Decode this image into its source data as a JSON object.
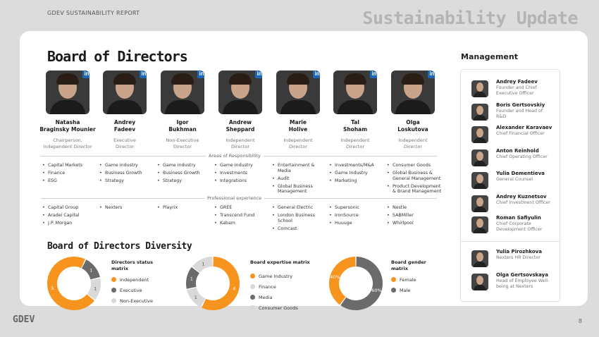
{
  "header": {
    "report_label": "GDEV SUSTAINABILITY REPORT",
    "title": "Sustainability Update"
  },
  "board": {
    "title": "Board of Directors",
    "directors": [
      {
        "name": "Natasha\nBraginsky Mounier",
        "role": "Chairperson,\nIndependent Director",
        "linkedin": "in"
      },
      {
        "name": "Andrey\nFadeev",
        "role": "Executive\nDirector",
        "linkedin": "in"
      },
      {
        "name": "Igor\nBukhman",
        "role": "Non-Executive\nDirector",
        "linkedin": "in"
      },
      {
        "name": "Andrew\nSheppard",
        "role": "Independent\nDirector",
        "linkedin": "in"
      },
      {
        "name": "Marie\nHolive",
        "role": "Independent\nDirector",
        "linkedin": "in"
      },
      {
        "name": "Tal\nShoham",
        "role": "Independent\nDirector",
        "linkedin": "in"
      },
      {
        "name": "Olga\nLoskutova",
        "role": "Independent\nDirector",
        "linkedin": "in"
      }
    ],
    "areas_label": "Areas of Responsibility",
    "areas": [
      [
        "Capital Markets",
        "Finance",
        "ESG"
      ],
      [
        "Game Industry",
        "Business Growth",
        "Strategy"
      ],
      [
        "Game Industry",
        "Business Growth",
        "Strategy"
      ],
      [
        "Game Industry",
        "Investments",
        "Integrations"
      ],
      [
        "Entertainment & Media",
        "Audit",
        "Global Business Management"
      ],
      [
        "Investments/M&A",
        "Game Industry",
        "Marketing"
      ],
      [
        "Consumer Goods",
        "Global Business & General Management",
        "Product Development & Brand Management"
      ]
    ],
    "experience_label": "Professional experience",
    "experience": [
      [
        "Capital Group",
        "Aradei Capital",
        "J.P. Morgan"
      ],
      [
        "Nexters"
      ],
      [
        "Playrix"
      ],
      [
        "GREE",
        "Transcend Fund",
        "Kabam"
      ],
      [
        "General Electric",
        "London Business School",
        "Comcast"
      ],
      [
        "Supersonic",
        "IronSource",
        "Huuuge"
      ],
      [
        "Nestle",
        "SABMiller",
        "Whirlpool"
      ]
    ]
  },
  "diversity": {
    "title": "Board of Directors Diversity",
    "colors": {
      "orange": "#f7941d",
      "dark": "#6b6b6b",
      "light": "#d9d9d9"
    }
  },
  "chart_data": [
    {
      "type": "pie",
      "title": "Directors status matrix",
      "categories": [
        "Independent",
        "Executive",
        "Non-Executive"
      ],
      "values": [
        5,
        1,
        1
      ],
      "labels": [
        "5",
        "1",
        "1"
      ]
    },
    {
      "type": "pie",
      "title": "Board expertise matrix",
      "categories": [
        "Game Industry",
        "Finance",
        "Media",
        "Consumer Goods"
      ],
      "values": [
        4,
        1,
        1,
        1
      ],
      "labels": [
        "4",
        "1",
        "1",
        "1"
      ]
    },
    {
      "type": "pie",
      "title": "Board gender matrix",
      "categories": [
        "Female",
        "Male"
      ],
      "values": [
        40,
        60
      ],
      "labels": [
        "40%",
        "60%"
      ]
    }
  ],
  "management": {
    "title": "Management",
    "people": [
      {
        "name": "Andrey Fadeev",
        "role": "Founder and Chief Executive Officer"
      },
      {
        "name": "Boris Gertsovskiy",
        "role": "Founder and Head of R&D"
      },
      {
        "name": "Alexander Karavaev",
        "role": "Chief Financial Officer"
      },
      {
        "name": "Anton Reinhold",
        "role": "Chief Operating Officer"
      },
      {
        "name": "Yulia Dementieva",
        "role": "General Counsel"
      },
      {
        "name": "Andrey Kuznetsov",
        "role": "Chief Investment Officer"
      },
      {
        "name": "Roman Safiyulin",
        "role": "Chief Corporate Development Officer"
      },
      {
        "name": "Yulia Pirozhkova",
        "role": "Nexters HR Director"
      },
      {
        "name": "Olga Gertsovskaya",
        "role": "Head of Employee Well-being at Nexters"
      }
    ]
  },
  "footer": {
    "logo": "GDEV",
    "page": "8"
  }
}
